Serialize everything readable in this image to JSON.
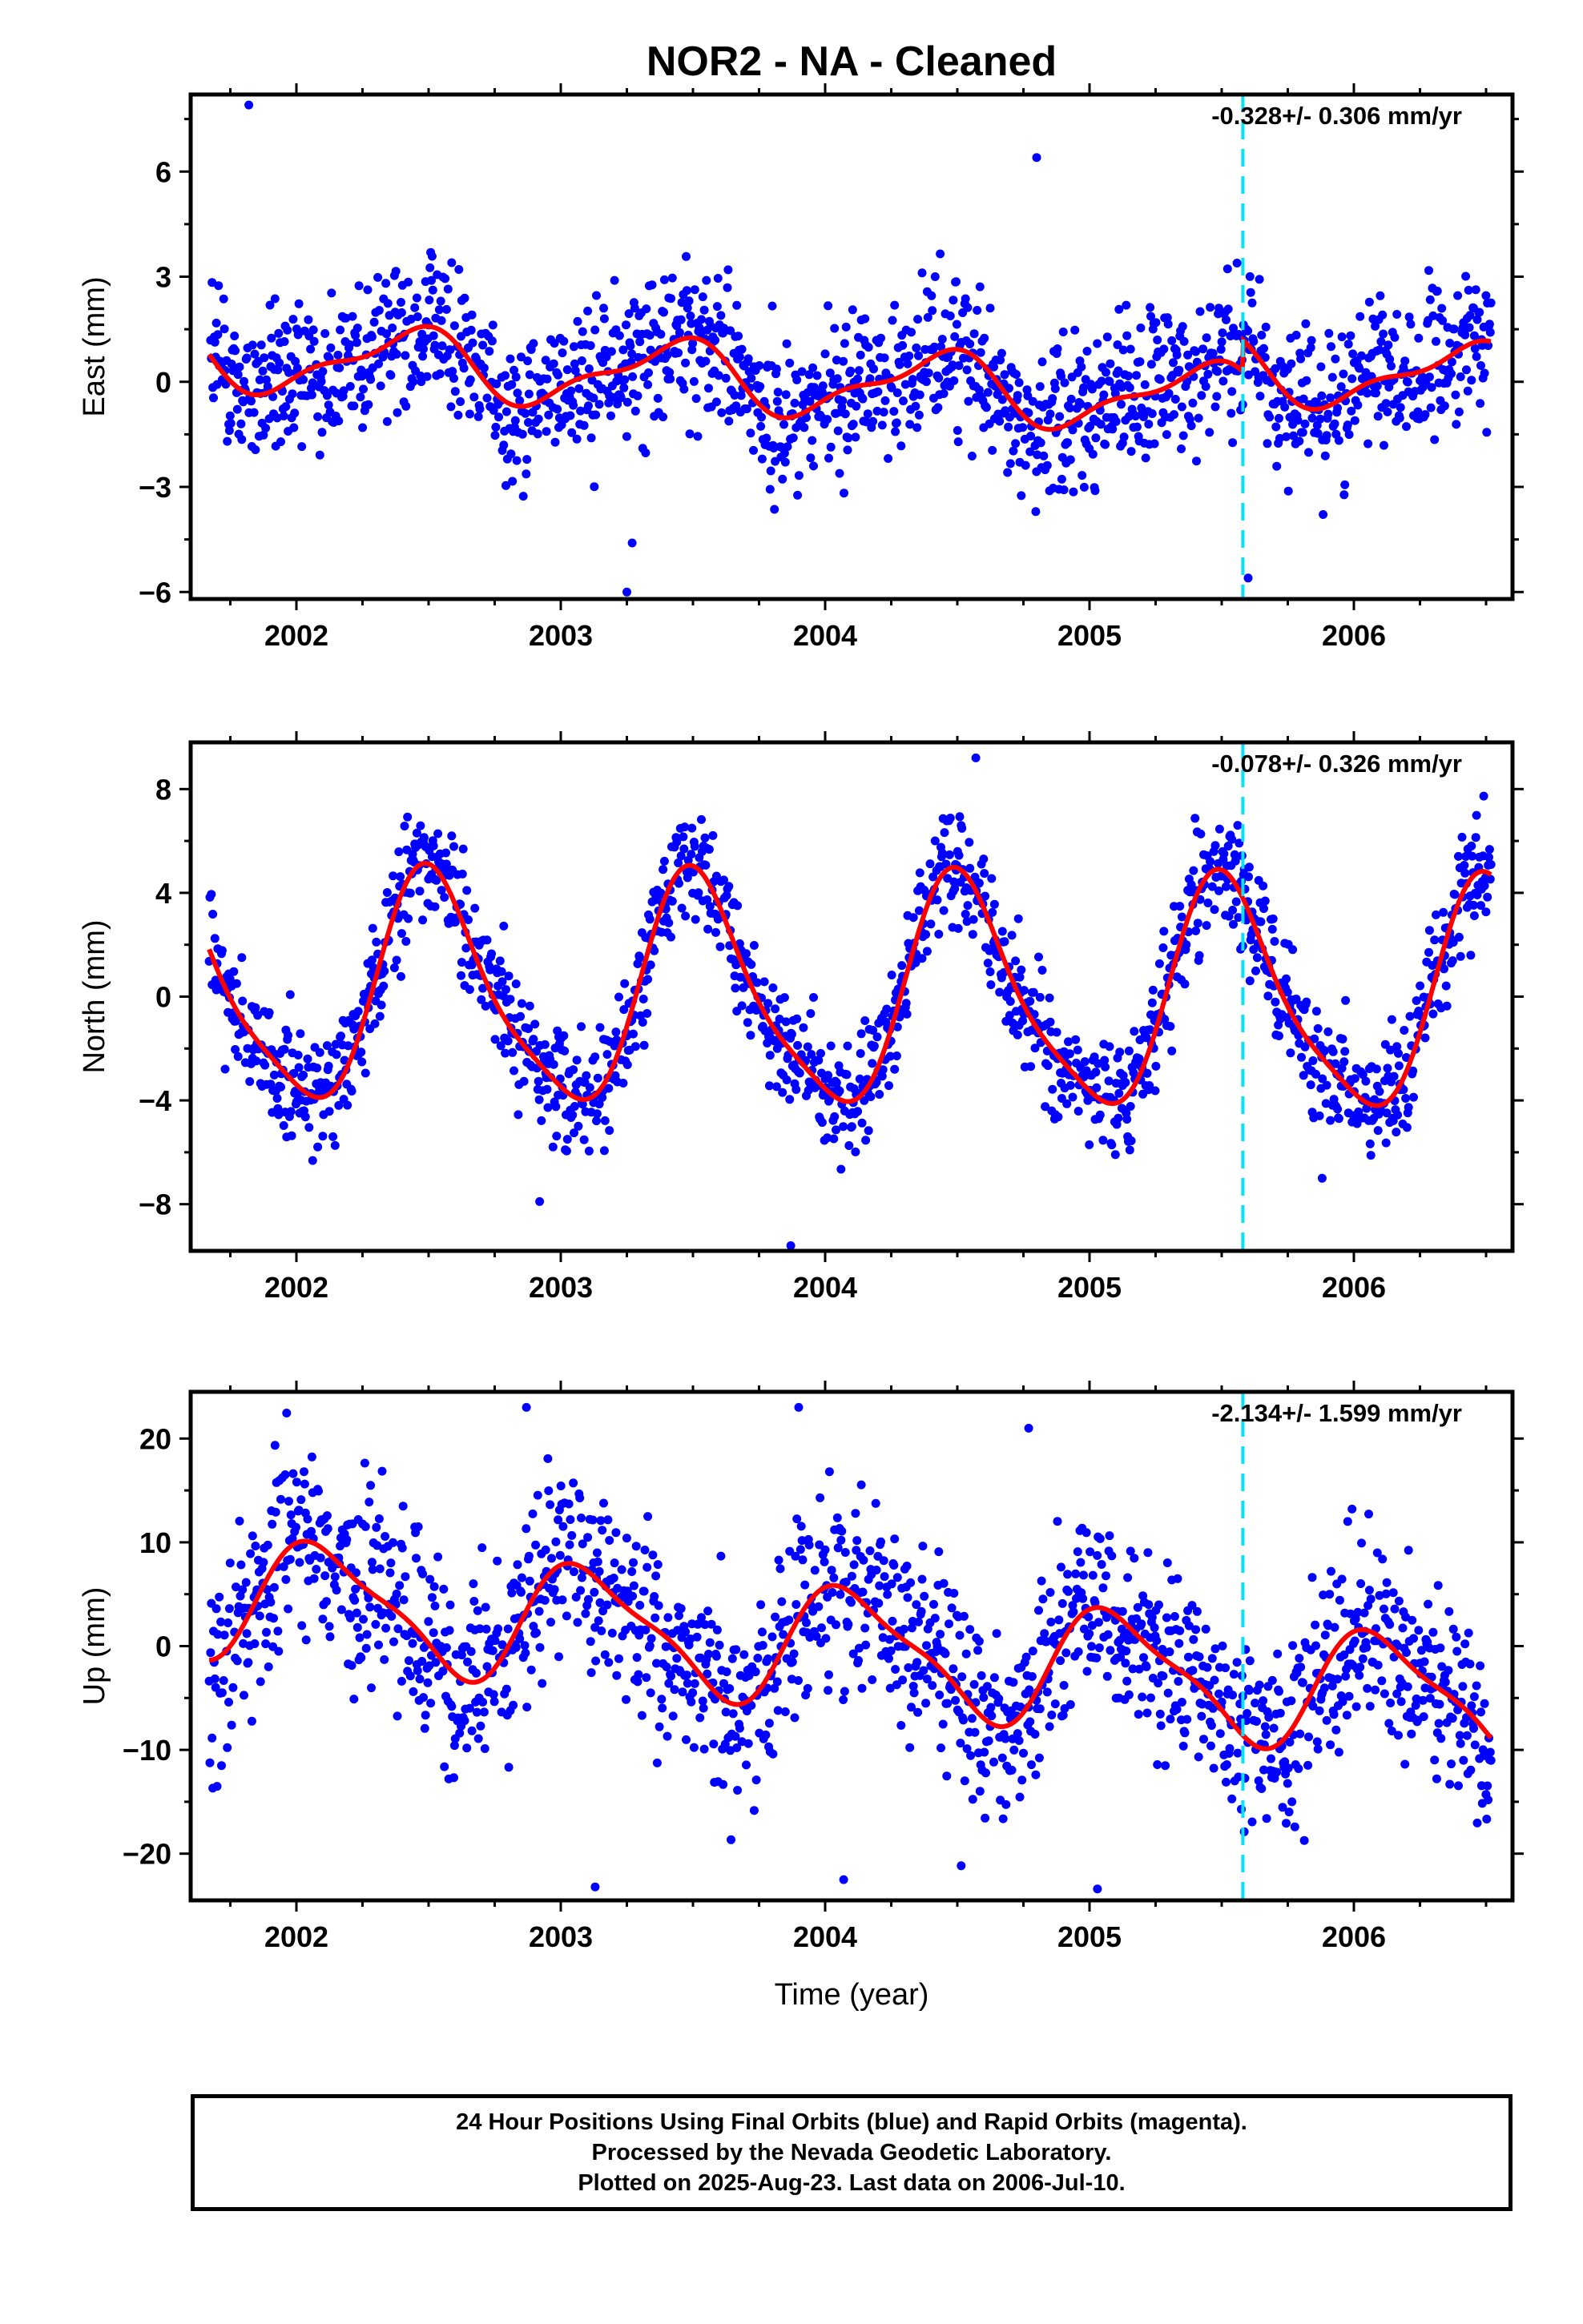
{
  "title": "NOR2  - NA - Cleaned",
  "xlabel": "Time (year)",
  "caption": {
    "line1": "24 Hour Positions Using Final Orbits (blue) and Rapid Orbits (magenta).",
    "line2": "Processed by the Nevada Geodetic Laboratory.",
    "line3": "Plotted on 2025-Aug-23. Last data on 2006-Jul-10."
  },
  "colors": {
    "data": "#0000ff",
    "fit": "#ff0000",
    "event": "#00e5ff",
    "frame": "#000000"
  },
  "chart_data": [
    {
      "type": "scatter",
      "ylabel": "East (mm)",
      "rate_label": "-0.328+/- 0.306 mm/yr",
      "xlim": [
        2001.6,
        2006.6
      ],
      "ylim": [
        -6.2,
        8.2
      ],
      "yticks": [
        -6,
        -3,
        0,
        3,
        6
      ],
      "xticks": [
        2002,
        2003,
        2004,
        2005,
        2006
      ],
      "event_x": 2005.58,
      "offset_at_event": 0.9,
      "data_range": [
        2001.67,
        2006.52
      ],
      "series": [
        {
          "name": "24 Hour Positions Using Final Orbits (blue)",
          "model": {
            "rate": -0.328,
            "annual": 0.9,
            "annual_phase": 5.2,
            "semiannual": 0.35,
            "semiannual_phase": 1.0,
            "noise": 1.1
          }
        },
        {
          "name": "fit"
        }
      ],
      "outliers": [
        [
          2001.82,
          7.9
        ],
        [
          2004.8,
          6.4
        ],
        [
          2003.27,
          -4.6
        ],
        [
          2003.25,
          -6.0
        ],
        [
          2005.6,
          -5.6
        ]
      ]
    },
    {
      "type": "scatter",
      "ylabel": "North (mm)",
      "rate_label": "-0.078+/- 0.326 mm/yr",
      "xlim": [
        2001.6,
        2006.6
      ],
      "ylim": [
        -9.8,
        9.8
      ],
      "yticks": [
        -8,
        -4,
        0,
        4,
        8
      ],
      "xticks": [
        2002,
        2003,
        2004,
        2005,
        2006
      ],
      "event_x": 2005.58,
      "data_range": [
        2001.67,
        2006.52
      ],
      "series": [
        {
          "name": "24 Hour Positions Using Final Orbits (blue)",
          "model": {
            "rate": -0.078,
            "annual": 4.3,
            "annual_phase": 4.6,
            "semiannual": 0.9,
            "semiannual_phase": 2.2,
            "noise": 1.1
          }
        },
        {
          "name": "fit"
        }
      ],
      "outliers": [
        [
          2004.57,
          9.2
        ],
        [
          2003.87,
          -9.6
        ],
        [
          2002.92,
          -7.9
        ],
        [
          2005.88,
          -7.0
        ]
      ]
    },
    {
      "type": "scatter",
      "ylabel": "Up (mm)",
      "rate_label": "-2.134+/- 1.599 mm/yr",
      "xlim": [
        2001.6,
        2006.6
      ],
      "ylim": [
        -24.5,
        24.5
      ],
      "yticks": [
        -20,
        -10,
        0,
        10,
        20
      ],
      "xticks": [
        2002,
        2003,
        2004,
        2005,
        2006
      ],
      "event_x": 2005.58,
      "data_range": [
        2001.67,
        2006.52
      ],
      "series": [
        {
          "name": "24 Hour Positions Using Final Orbits (blue)",
          "model": {
            "rate": -2.134,
            "annual": 5.5,
            "annual_phase": 0.9,
            "semiannual": 1.5,
            "semiannual_phase": 2.0,
            "noise": 4.6
          }
        },
        {
          "name": "fit"
        }
      ],
      "outliers": [
        [
          2003.9,
          23.0
        ],
        [
          2002.87,
          23.0
        ],
        [
          2003.13,
          -23.2
        ],
        [
          2004.07,
          -22.5
        ],
        [
          2005.03,
          -23.4
        ],
        [
          2004.77,
          21.0
        ]
      ]
    }
  ]
}
